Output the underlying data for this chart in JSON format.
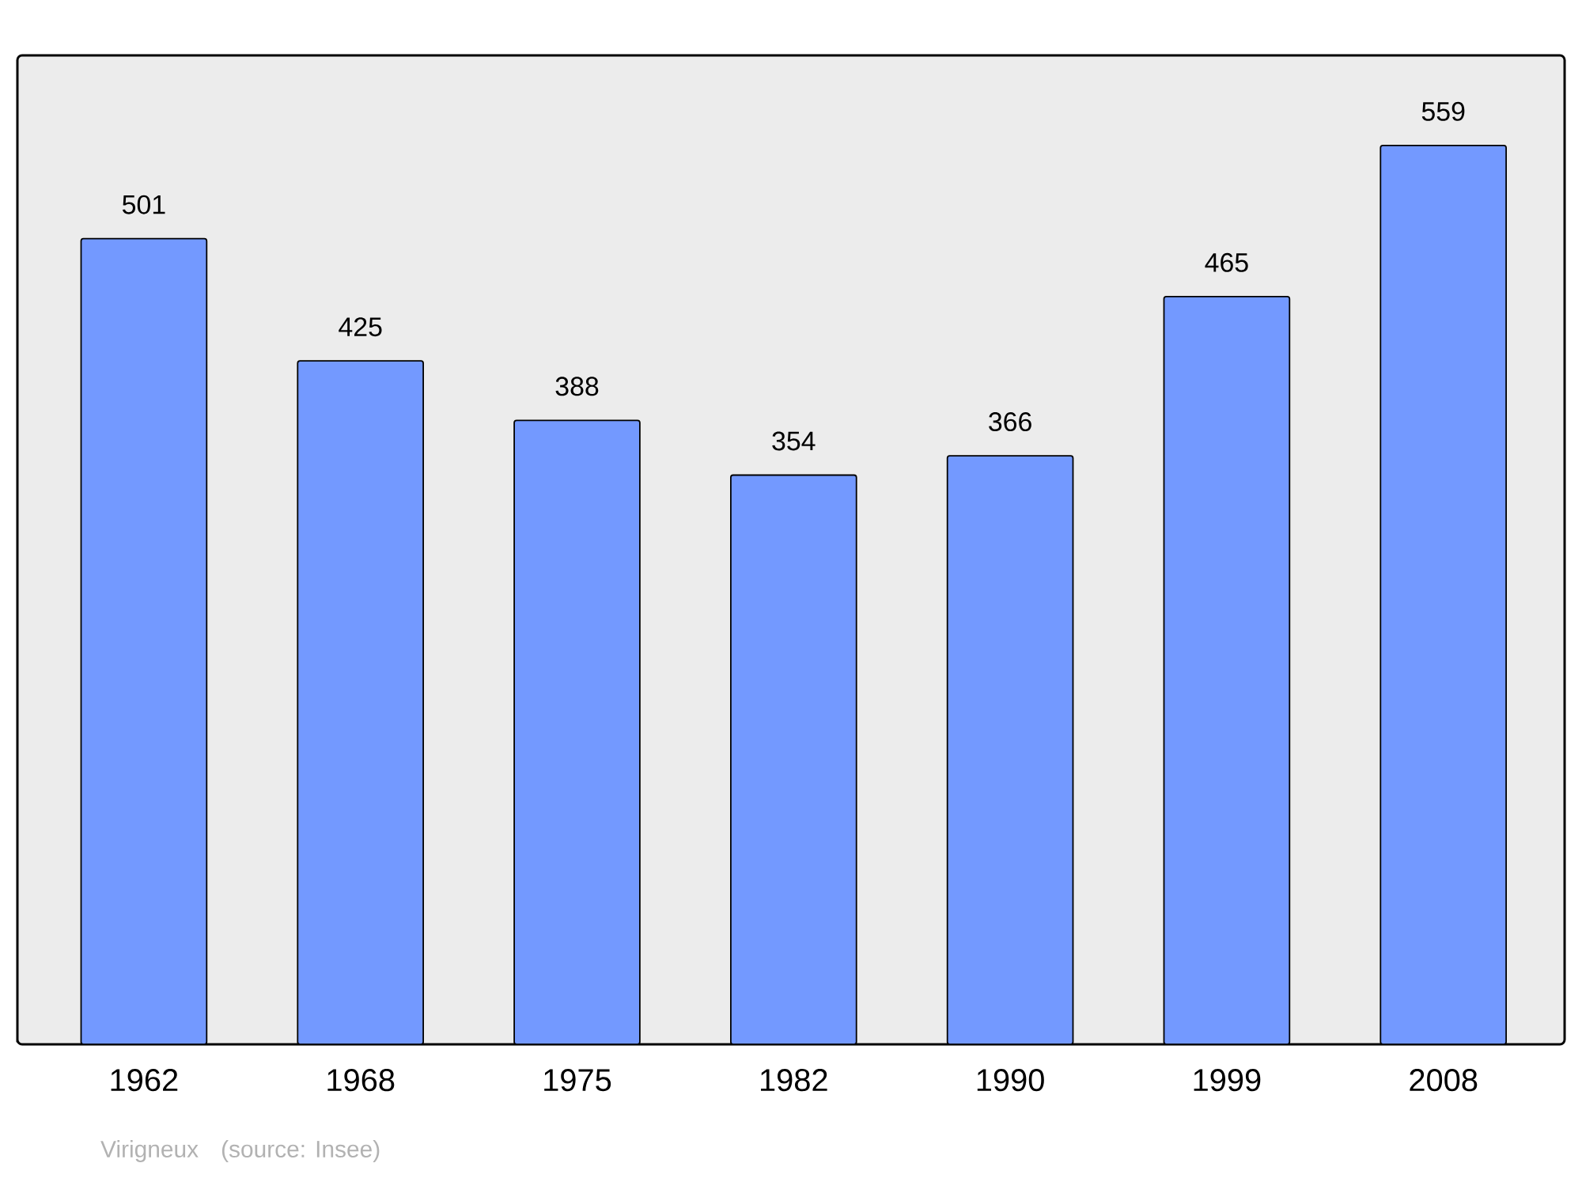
{
  "chart_data": {
    "type": "bar",
    "categories": [
      "1962",
      "1968",
      "1975",
      "1982",
      "1990",
      "1999",
      "2008"
    ],
    "values": [
      501,
      425,
      388,
      354,
      366,
      465,
      559
    ],
    "color": "#7399ff",
    "ylim": [
      0,
      615
    ],
    "data_labels": true,
    "tick_labels": "x",
    "grid": false,
    "annotations": [
      "Virigneux",
      "(source: Insee)"
    ]
  }
}
